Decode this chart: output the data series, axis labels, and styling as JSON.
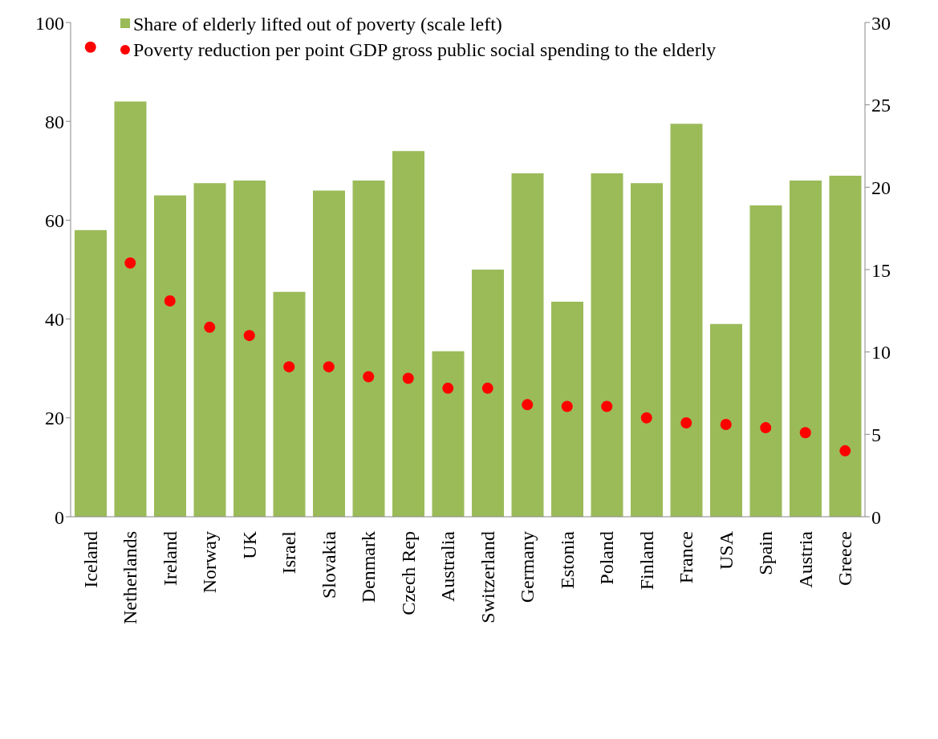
{
  "chart_data": {
    "type": "bar",
    "categories": [
      "Iceland",
      "Netherlands",
      "Ireland",
      "Norway",
      "UK",
      "Israel",
      "Slovakia",
      "Denmark",
      "Czech Rep",
      "Australia",
      "Switzerland",
      "Germany",
      "Estonia",
      "Poland",
      "Finland",
      "France",
      "USA",
      "Spain",
      "Austria",
      "Greece"
    ],
    "series": [
      {
        "name": "Share of elderly lifted out of poverty (scale left)",
        "color": "#9bbb59",
        "values": [
          58,
          84,
          65,
          67.5,
          68,
          45.5,
          66,
          68,
          74,
          33.5,
          50,
          69.5,
          43.5,
          69.5,
          67.5,
          79.5,
          39,
          63,
          68,
          69
        ]
      },
      {
        "name": "Poverty reduction per point GDP gross public social spending to the elderly",
        "type": "scatter",
        "axis": "y2",
        "color": "#ff0000",
        "values": [
          28.5,
          15.4,
          13.1,
          11.5,
          11,
          9.1,
          9.1,
          8.5,
          8.4,
          7.8,
          7.8,
          6.8,
          6.7,
          6.7,
          6,
          5.7,
          5.6,
          5.4,
          5.1,
          4
        ]
      }
    ],
    "ylim": [
      0,
      100
    ],
    "yticks": [
      0,
      20,
      40,
      60,
      80,
      100
    ],
    "y2lim": [
      0,
      30
    ],
    "y2ticks": [
      0,
      5,
      10,
      15,
      20,
      25,
      30
    ],
    "grid": false,
    "legend": "top left",
    "marker": "circle"
  }
}
